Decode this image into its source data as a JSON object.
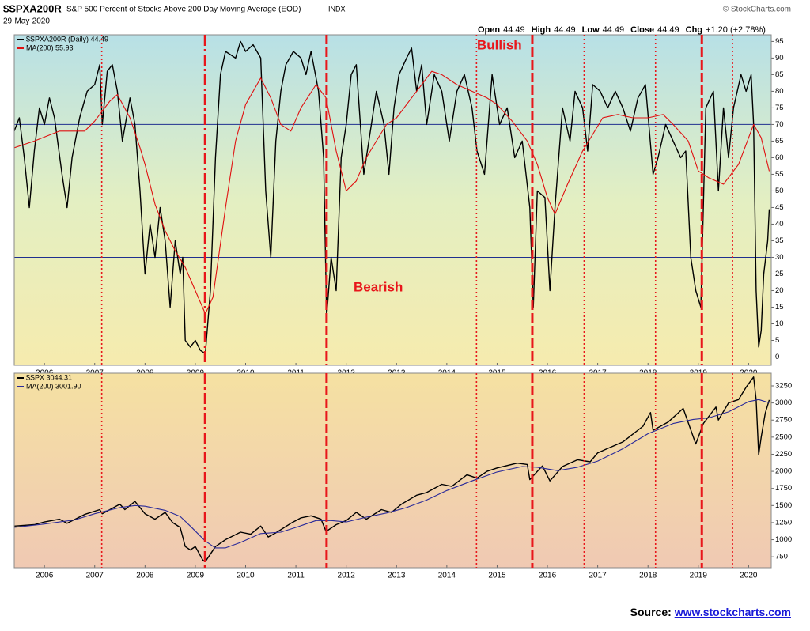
{
  "chart_data": [
    {
      "type": "line",
      "title": "$SPXA200R",
      "subtitle": "S&P 500 Percent of Stocks Above 200 Day Moving Average (EOD)",
      "exchange": "INDX",
      "date": "29-May-2020",
      "copyright": "© StockCharts.com",
      "quote": [
        {
          "label": "Open",
          "value": "44.49"
        },
        {
          "label": "High",
          "value": "44.49"
        },
        {
          "label": "Low",
          "value": "44.49"
        },
        {
          "label": "Close",
          "value": "44.49"
        },
        {
          "label": "Chg",
          "value": "+1.20 (+2.78%)"
        }
      ],
      "annotations": [
        "Bullish",
        "Bearish"
      ],
      "xlim": [
        2005.4,
        2020.45
      ],
      "xticks": [
        2006,
        2007,
        2008,
        2009,
        2010,
        2011,
        2012,
        2013,
        2014,
        2015,
        2016,
        2017,
        2018,
        2019,
        2020
      ],
      "ylim": [
        -2.5,
        97
      ],
      "yticks": [
        0,
        5,
        10,
        15,
        20,
        25,
        30,
        35,
        40,
        45,
        50,
        55,
        60,
        65,
        70,
        75,
        80,
        85,
        90,
        95
      ],
      "hlines": [
        30,
        50,
        70
      ],
      "hline_color": "#1f2f8f",
      "event_lines": [
        {
          "x": 2007.14,
          "style": "dotted"
        },
        {
          "x": 2009.19,
          "style": "dashdot"
        },
        {
          "x": 2011.61,
          "style": "dashed"
        },
        {
          "x": 2014.59,
          "style": "dotted"
        },
        {
          "x": 2015.7,
          "style": "dashed"
        },
        {
          "x": 2016.73,
          "style": "dotted"
        },
        {
          "x": 2018.15,
          "style": "dotted"
        },
        {
          "x": 2019.07,
          "style": "dashed"
        },
        {
          "x": 2019.68,
          "style": "dotted"
        }
      ],
      "event_color": "#e8161b",
      "series": [
        {
          "name": "$SPXA200R (Daily) 44.49",
          "color": "#000000",
          "x": [
            2005.4,
            2005.5,
            2005.6,
            2005.7,
            2005.8,
            2005.9,
            2006.0,
            2006.1,
            2006.2,
            2006.35,
            2006.45,
            2006.55,
            2006.7,
            2006.85,
            2007.0,
            2007.1,
            2007.15,
            2007.25,
            2007.35,
            2007.45,
            2007.55,
            2007.7,
            2007.8,
            2007.9,
            2008.0,
            2008.1,
            2008.2,
            2008.3,
            2008.4,
            2008.5,
            2008.6,
            2008.7,
            2008.75,
            2008.8,
            2008.9,
            2009.0,
            2009.1,
            2009.2,
            2009.3,
            2009.4,
            2009.5,
            2009.6,
            2009.8,
            2009.9,
            2010.0,
            2010.15,
            2010.3,
            2010.4,
            2010.5,
            2010.6,
            2010.7,
            2010.8,
            2010.95,
            2011.1,
            2011.2,
            2011.3,
            2011.45,
            2011.55,
            2011.61,
            2011.7,
            2011.8,
            2011.9,
            2012.0,
            2012.1,
            2012.2,
            2012.35,
            2012.45,
            2012.6,
            2012.75,
            2012.85,
            2012.95,
            2013.05,
            2013.2,
            2013.3,
            2013.4,
            2013.5,
            2013.6,
            2013.75,
            2013.9,
            2014.05,
            2014.2,
            2014.35,
            2014.5,
            2014.6,
            2014.75,
            2014.9,
            2015.05,
            2015.2,
            2015.35,
            2015.5,
            2015.65,
            2015.72,
            2015.8,
            2015.95,
            2016.05,
            2016.15,
            2016.3,
            2016.45,
            2016.55,
            2016.7,
            2016.8,
            2016.9,
            2017.05,
            2017.2,
            2017.35,
            2017.5,
            2017.65,
            2017.8,
            2017.95,
            2018.1,
            2018.2,
            2018.35,
            2018.5,
            2018.65,
            2018.75,
            2018.85,
            2018.95,
            2019.05,
            2019.15,
            2019.3,
            2019.4,
            2019.5,
            2019.6,
            2019.7,
            2019.85,
            2019.95,
            2020.05,
            2020.1,
            2020.15,
            2020.2,
            2020.25,
            2020.3,
            2020.38,
            2020.41
          ],
          "values": [
            68,
            72,
            60,
            45,
            62,
            75,
            70,
            78,
            72,
            55,
            45,
            60,
            72,
            80,
            82,
            88,
            70,
            86,
            88,
            80,
            65,
            78,
            70,
            50,
            25,
            40,
            30,
            45,
            35,
            15,
            35,
            25,
            30,
            5,
            3,
            5,
            2,
            1,
            20,
            60,
            85,
            92,
            90,
            95,
            92,
            94,
            90,
            50,
            30,
            65,
            80,
            88,
            92,
            90,
            85,
            92,
            80,
            60,
            12,
            30,
            20,
            60,
            70,
            85,
            88,
            55,
            65,
            80,
            70,
            55,
            75,
            85,
            90,
            93,
            80,
            88,
            70,
            85,
            80,
            65,
            80,
            85,
            75,
            62,
            55,
            85,
            70,
            75,
            60,
            65,
            45,
            15,
            50,
            48,
            20,
            45,
            75,
            65,
            80,
            75,
            62,
            82,
            80,
            75,
            80,
            75,
            68,
            78,
            82,
            55,
            60,
            70,
            65,
            60,
            62,
            30,
            20,
            15,
            75,
            80,
            50,
            75,
            60,
            75,
            85,
            80,
            85,
            70,
            20,
            3,
            8,
            25,
            35,
            44.49
          ]
        },
        {
          "name": "MA(200) 55.93",
          "color": "#e01010",
          "x": [
            2005.4,
            2005.8,
            2006.3,
            2006.8,
            2007.0,
            2007.3,
            2007.45,
            2007.7,
            2007.9,
            2008.0,
            2008.2,
            2008.4,
            2008.6,
            2008.8,
            2009.0,
            2009.2,
            2009.35,
            2009.6,
            2009.8,
            2010.0,
            2010.3,
            2010.5,
            2010.7,
            2010.9,
            2011.1,
            2011.4,
            2011.6,
            2011.8,
            2012.0,
            2012.2,
            2012.4,
            2012.6,
            2012.8,
            2013.0,
            2013.3,
            2013.5,
            2013.7,
            2013.9,
            2014.2,
            2014.5,
            2014.8,
            2015.0,
            2015.3,
            2015.6,
            2015.8,
            2016.0,
            2016.15,
            2016.4,
            2016.7,
            2016.9,
            2017.1,
            2017.4,
            2017.7,
            2018.0,
            2018.3,
            2018.5,
            2018.8,
            2019.0,
            2019.2,
            2019.5,
            2019.8,
            2020.0,
            2020.1,
            2020.25,
            2020.41
          ],
          "values": [
            63,
            65,
            68,
            68,
            71,
            77,
            79,
            72,
            63,
            58,
            46,
            38,
            32,
            27,
            20,
            13,
            18,
            45,
            65,
            76,
            84,
            78,
            70,
            68,
            75,
            82,
            78,
            62,
            50,
            53,
            60,
            65,
            70,
            72,
            78,
            82,
            86,
            85,
            82,
            80,
            78,
            76,
            71,
            65,
            58,
            48,
            43,
            52,
            62,
            67,
            72,
            73,
            72,
            72,
            73,
            70,
            65,
            56,
            54,
            52,
            58,
            66,
            70,
            66,
            55.93
          ]
        }
      ]
    },
    {
      "type": "line",
      "xlim": [
        2005.4,
        2020.45
      ],
      "xticks": [
        2006,
        2007,
        2008,
        2009,
        2010,
        2011,
        2012,
        2013,
        2014,
        2015,
        2016,
        2017,
        2018,
        2019,
        2020
      ],
      "ylim": [
        590,
        3435
      ],
      "yticks": [
        750,
        1000,
        1250,
        1500,
        1750,
        2000,
        2250,
        2500,
        2750,
        3000,
        3250
      ],
      "series": [
        {
          "name": "$SPX 3044.31",
          "color": "#000000",
          "x": [
            2005.4,
            2005.8,
            2006.0,
            2006.3,
            2006.45,
            2006.8,
            2007.1,
            2007.15,
            2007.5,
            2007.6,
            2007.8,
            2008.0,
            2008.2,
            2008.4,
            2008.55,
            2008.7,
            2008.8,
            2008.9,
            2009.0,
            2009.15,
            2009.2,
            2009.4,
            2009.6,
            2009.9,
            2010.1,
            2010.3,
            2010.45,
            2010.6,
            2010.9,
            2011.1,
            2011.3,
            2011.5,
            2011.6,
            2011.8,
            2012.0,
            2012.2,
            2012.4,
            2012.7,
            2012.9,
            2013.1,
            2013.4,
            2013.6,
            2013.9,
            2014.1,
            2014.4,
            2014.6,
            2014.8,
            2015.0,
            2015.4,
            2015.6,
            2015.65,
            2015.9,
            2016.05,
            2016.3,
            2016.6,
            2016.85,
            2017.0,
            2017.5,
            2017.9,
            2018.05,
            2018.1,
            2018.4,
            2018.7,
            2018.95,
            2019.1,
            2019.35,
            2019.4,
            2019.6,
            2019.8,
            2019.95,
            2020.1,
            2020.15,
            2020.2,
            2020.25,
            2020.33,
            2020.41
          ],
          "values": [
            1200,
            1220,
            1260,
            1300,
            1240,
            1370,
            1440,
            1380,
            1520,
            1440,
            1560,
            1380,
            1300,
            1400,
            1250,
            1180,
            900,
            850,
            900,
            700,
            680,
            900,
            1000,
            1110,
            1080,
            1200,
            1040,
            1100,
            1240,
            1320,
            1350,
            1300,
            1120,
            1220,
            1280,
            1400,
            1300,
            1440,
            1400,
            1520,
            1650,
            1690,
            1810,
            1780,
            1950,
            1900,
            2000,
            2050,
            2120,
            2100,
            1880,
            2080,
            1860,
            2070,
            2170,
            2140,
            2270,
            2430,
            2660,
            2860,
            2600,
            2720,
            2920,
            2400,
            2700,
            2940,
            2750,
            3000,
            3050,
            3230,
            3380,
            3050,
            2240,
            2500,
            2850,
            3044.31
          ]
        },
        {
          "name": "MA(200) 3001.90",
          "color": "#2a2a9a",
          "x": [
            2005.4,
            2006.0,
            2006.6,
            2007.0,
            2007.5,
            2007.8,
            2008.0,
            2008.4,
            2008.7,
            2008.9,
            2009.2,
            2009.4,
            2009.6,
            2009.9,
            2010.3,
            2010.7,
            2011.0,
            2011.4,
            2011.7,
            2012.0,
            2012.4,
            2012.8,
            2013.2,
            2013.6,
            2014.0,
            2014.5,
            2015.0,
            2015.5,
            2015.8,
            2016.2,
            2016.6,
            2017.0,
            2017.5,
            2018.0,
            2018.5,
            2018.9,
            2019.2,
            2019.6,
            2020.0,
            2020.2,
            2020.41
          ],
          "values": [
            1180,
            1230,
            1290,
            1380,
            1470,
            1500,
            1490,
            1430,
            1340,
            1200,
            980,
            880,
            880,
            960,
            1090,
            1110,
            1180,
            1280,
            1280,
            1260,
            1330,
            1390,
            1470,
            1580,
            1720,
            1860,
            1990,
            2070,
            2060,
            2010,
            2060,
            2150,
            2330,
            2550,
            2700,
            2760,
            2780,
            2870,
            3020,
            3050,
            3001.9
          ]
        }
      ]
    }
  ],
  "source": {
    "label": "Source:",
    "link": "www.stockcharts.com"
  }
}
